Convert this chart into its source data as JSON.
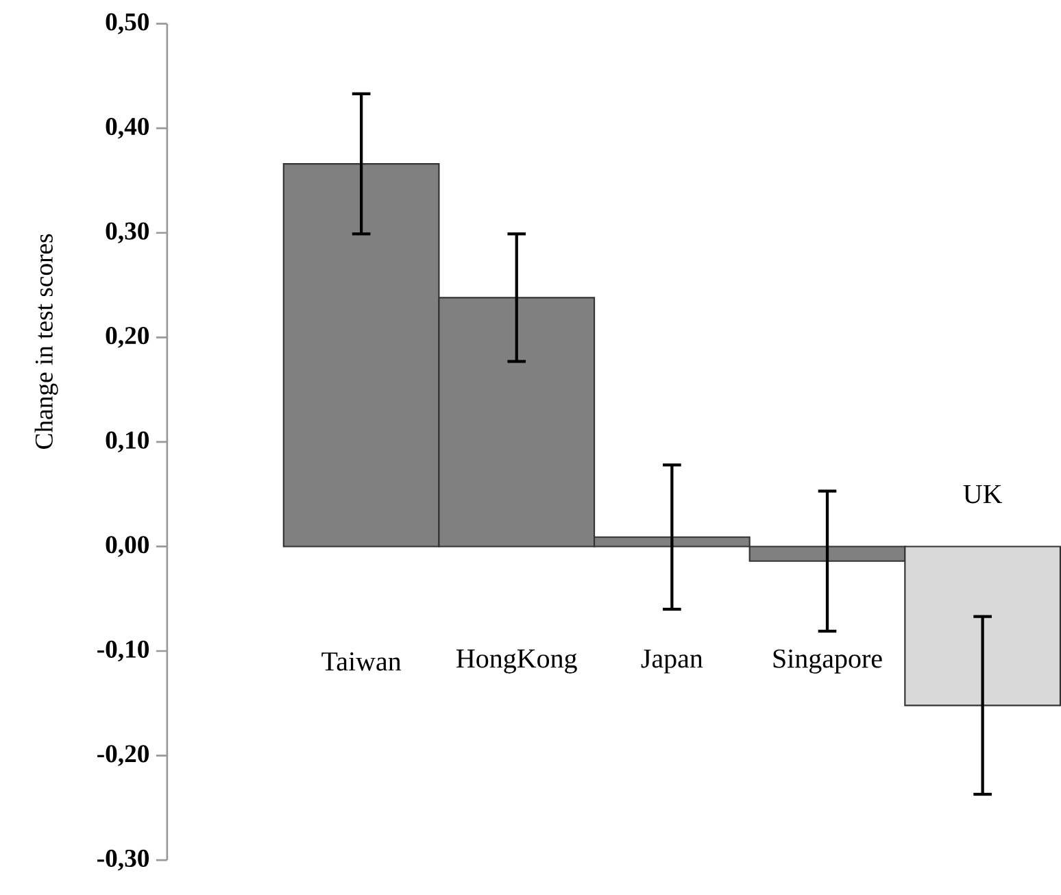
{
  "chart_data": {
    "type": "bar",
    "ylabel": "Change in test scores",
    "categories": [
      "Taiwan",
      "HongKong",
      "Japan",
      "Singapore",
      "UK"
    ],
    "values": [
      0.366,
      0.238,
      0.009,
      -0.014,
      -0.152
    ],
    "errors": [
      0.067,
      0.061,
      0.069,
      0.067,
      0.085
    ],
    "colors": [
      "#808080",
      "#808080",
      "#808080",
      "#808080",
      "#d9d9d9"
    ],
    "ylim": [
      -0.3,
      0.5
    ],
    "yticks": [
      {
        "value": -0.3,
        "label": "-0,30"
      },
      {
        "value": -0.2,
        "label": "-0,20"
      },
      {
        "value": -0.1,
        "label": "-0,10"
      },
      {
        "value": 0,
        "label": "0,00"
      },
      {
        "value": 0.1,
        "label": "0,10"
      },
      {
        "value": 0.2,
        "label": "0,20"
      },
      {
        "value": 0.3,
        "label": "0,30"
      },
      {
        "value": 0.4,
        "label": "0,40"
      },
      {
        "value": 0.5,
        "label": "0,50"
      }
    ],
    "grid": false
  }
}
